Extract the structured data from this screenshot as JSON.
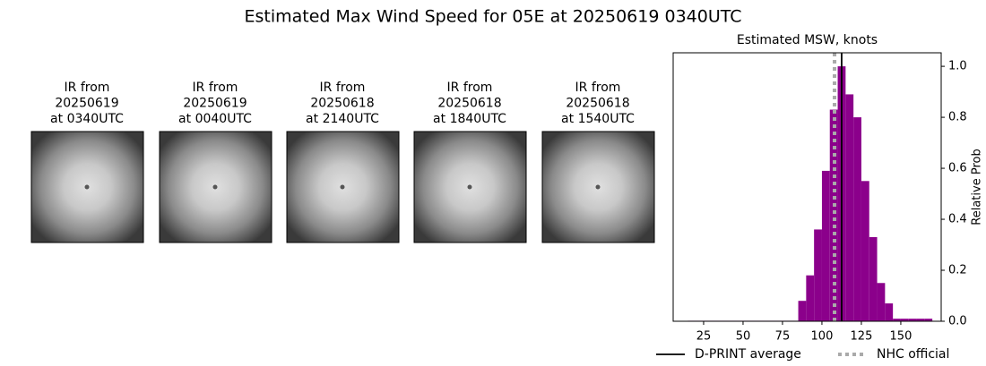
{
  "title": "Estimated Max Wind Speed for 05E at 20250619 0340UTC",
  "images": [
    {
      "lines": [
        "IR from",
        "20250619",
        "at 0340UTC"
      ]
    },
    {
      "lines": [
        "IR from",
        "20250619",
        "at 0040UTC"
      ]
    },
    {
      "lines": [
        "IR from",
        "20250618",
        "at 2140UTC"
      ]
    },
    {
      "lines": [
        "IR from",
        "20250618",
        "at 1840UTC"
      ]
    },
    {
      "lines": [
        "IR from",
        "20250618",
        "at 1540UTC"
      ]
    }
  ],
  "chart_data": {
    "type": "histogram",
    "title": "Estimated MSW, knots",
    "ylabel": "Relative Prob",
    "color": "#8b008b",
    "bins": [
      15,
      20,
      25,
      30,
      35,
      40,
      45,
      50,
      55,
      60,
      65,
      70,
      75,
      80,
      85,
      90,
      95,
      100,
      105,
      110,
      115,
      120,
      125,
      130,
      135,
      140,
      145,
      150,
      155,
      160,
      165,
      170
    ],
    "values": [
      0.002,
      0.002,
      0.002,
      0.002,
      0.002,
      0.002,
      0.002,
      0.002,
      0.002,
      0.002,
      0.002,
      0.002,
      0.002,
      0.002,
      0.08,
      0.18,
      0.36,
      0.59,
      0.83,
      1.0,
      0.89,
      0.8,
      0.55,
      0.33,
      0.15,
      0.07,
      0.01,
      0.01,
      0.01,
      0.01,
      0.01
    ],
    "xlim": [
      5.7,
      175.6
    ],
    "xticks": [
      25,
      50,
      75,
      100,
      125,
      150
    ],
    "ylim": [
      0,
      1.053
    ],
    "yticks": [
      {
        "value": 0,
        "label": "0.0"
      },
      {
        "value": 0.2,
        "label": "0.2"
      },
      {
        "value": 0.4,
        "label": "0.4"
      },
      {
        "value": 0.6,
        "label": "0.6"
      },
      {
        "value": 0.8,
        "label": "0.8"
      },
      {
        "value": 1.0,
        "label": "1.0"
      }
    ],
    "lines": [
      {
        "name": "D-PRINT average",
        "value": 112.5,
        "color": "#000000",
        "style": "solid"
      },
      {
        "name": "NHC official",
        "value": 108,
        "color": "#aaaaaa",
        "style": "dotted"
      }
    ],
    "legend": "bottom"
  }
}
